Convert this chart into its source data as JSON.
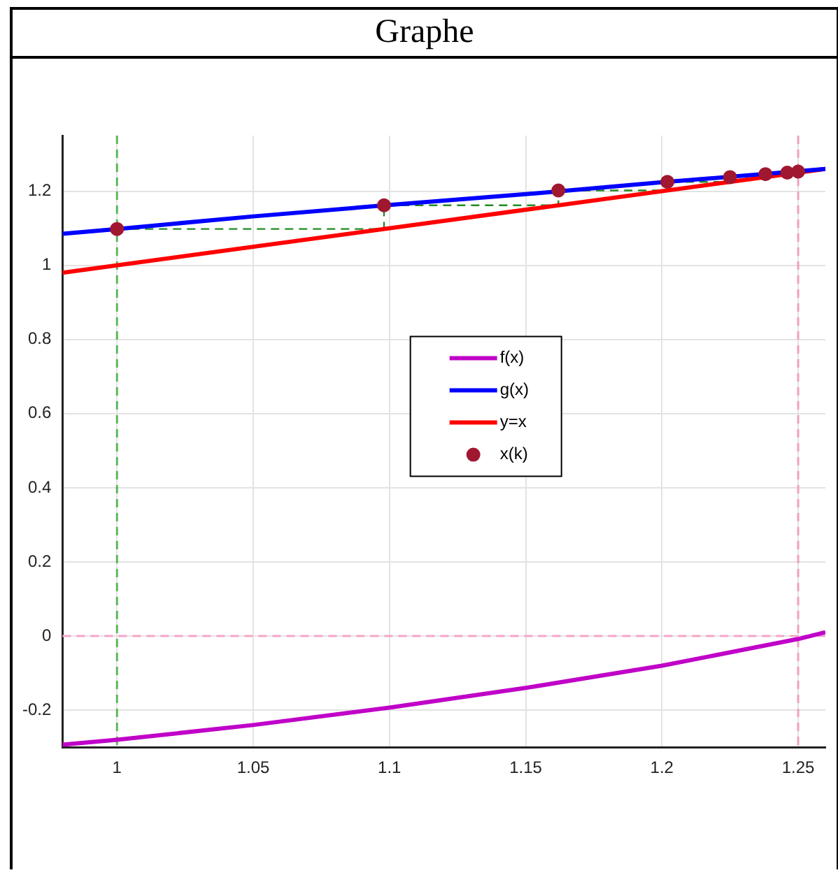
{
  "chart_data": {
    "type": "line",
    "title": "Graphe",
    "series": [
      {
        "name": "f(x)",
        "color": "#c000c8",
        "x": [
          0.98,
          1,
          1.05,
          1.1,
          1.15,
          1.2,
          1.25,
          1.26
        ],
        "values": [
          -0.293,
          -0.28,
          -0.24,
          -0.193,
          -0.14,
          -0.08,
          -0.008,
          0.01
        ]
      },
      {
        "name": "g(x)",
        "color": "#0000ff",
        "x": [
          0.98,
          1,
          1.05,
          1.1,
          1.15,
          1.2,
          1.26
        ],
        "values": [
          1.085,
          1.098,
          1.132,
          1.163,
          1.192,
          1.224,
          1.26
        ]
      },
      {
        "name": "y=x",
        "color": "#ff0000",
        "x": [
          0.98,
          1.26
        ],
        "values": [
          0.98,
          1.26
        ]
      },
      {
        "name": "x(k)",
        "type": "scatter",
        "marker": "circle",
        "color": "#a01830",
        "x": [
          1,
          1.098,
          1.162,
          1.202,
          1.225,
          1.238,
          1.246,
          1.25
        ],
        "values": [
          1.098,
          1.162,
          1.202,
          1.225,
          1.238,
          1.246,
          1.25,
          1.253
        ]
      },
      {
        "line_style": "dashed",
        "color": "#228b22",
        "x": [
          1,
          1.098,
          1.098,
          1.162,
          1.162,
          1.202,
          1.202,
          1.225
        ],
        "values": [
          1.098,
          1.098,
          1.162,
          1.162,
          1.202,
          1.202,
          1.225,
          1.225
        ]
      }
    ],
    "xlim": [
      0.98,
      1.26
    ],
    "ylim": [
      -0.3,
      1.35
    ],
    "xticks": [
      1,
      1.05,
      1.1,
      1.15,
      1.2,
      1.25
    ],
    "yticks": [
      -0.2,
      0,
      0.2,
      0.4,
      0.6,
      0.8,
      1,
      1.2
    ],
    "ref_lines": [
      {
        "axis": "x",
        "value": 1,
        "color": "#5cb85c",
        "line_style": "dashed"
      },
      {
        "axis": "y",
        "value": 0,
        "color": "#f4a6c8",
        "line_style": "dashed"
      },
      {
        "axis": "x",
        "value": 1.25,
        "color": "#f0a0c0",
        "line_style": "dashed"
      }
    ],
    "grid": true,
    "legend": "center"
  }
}
